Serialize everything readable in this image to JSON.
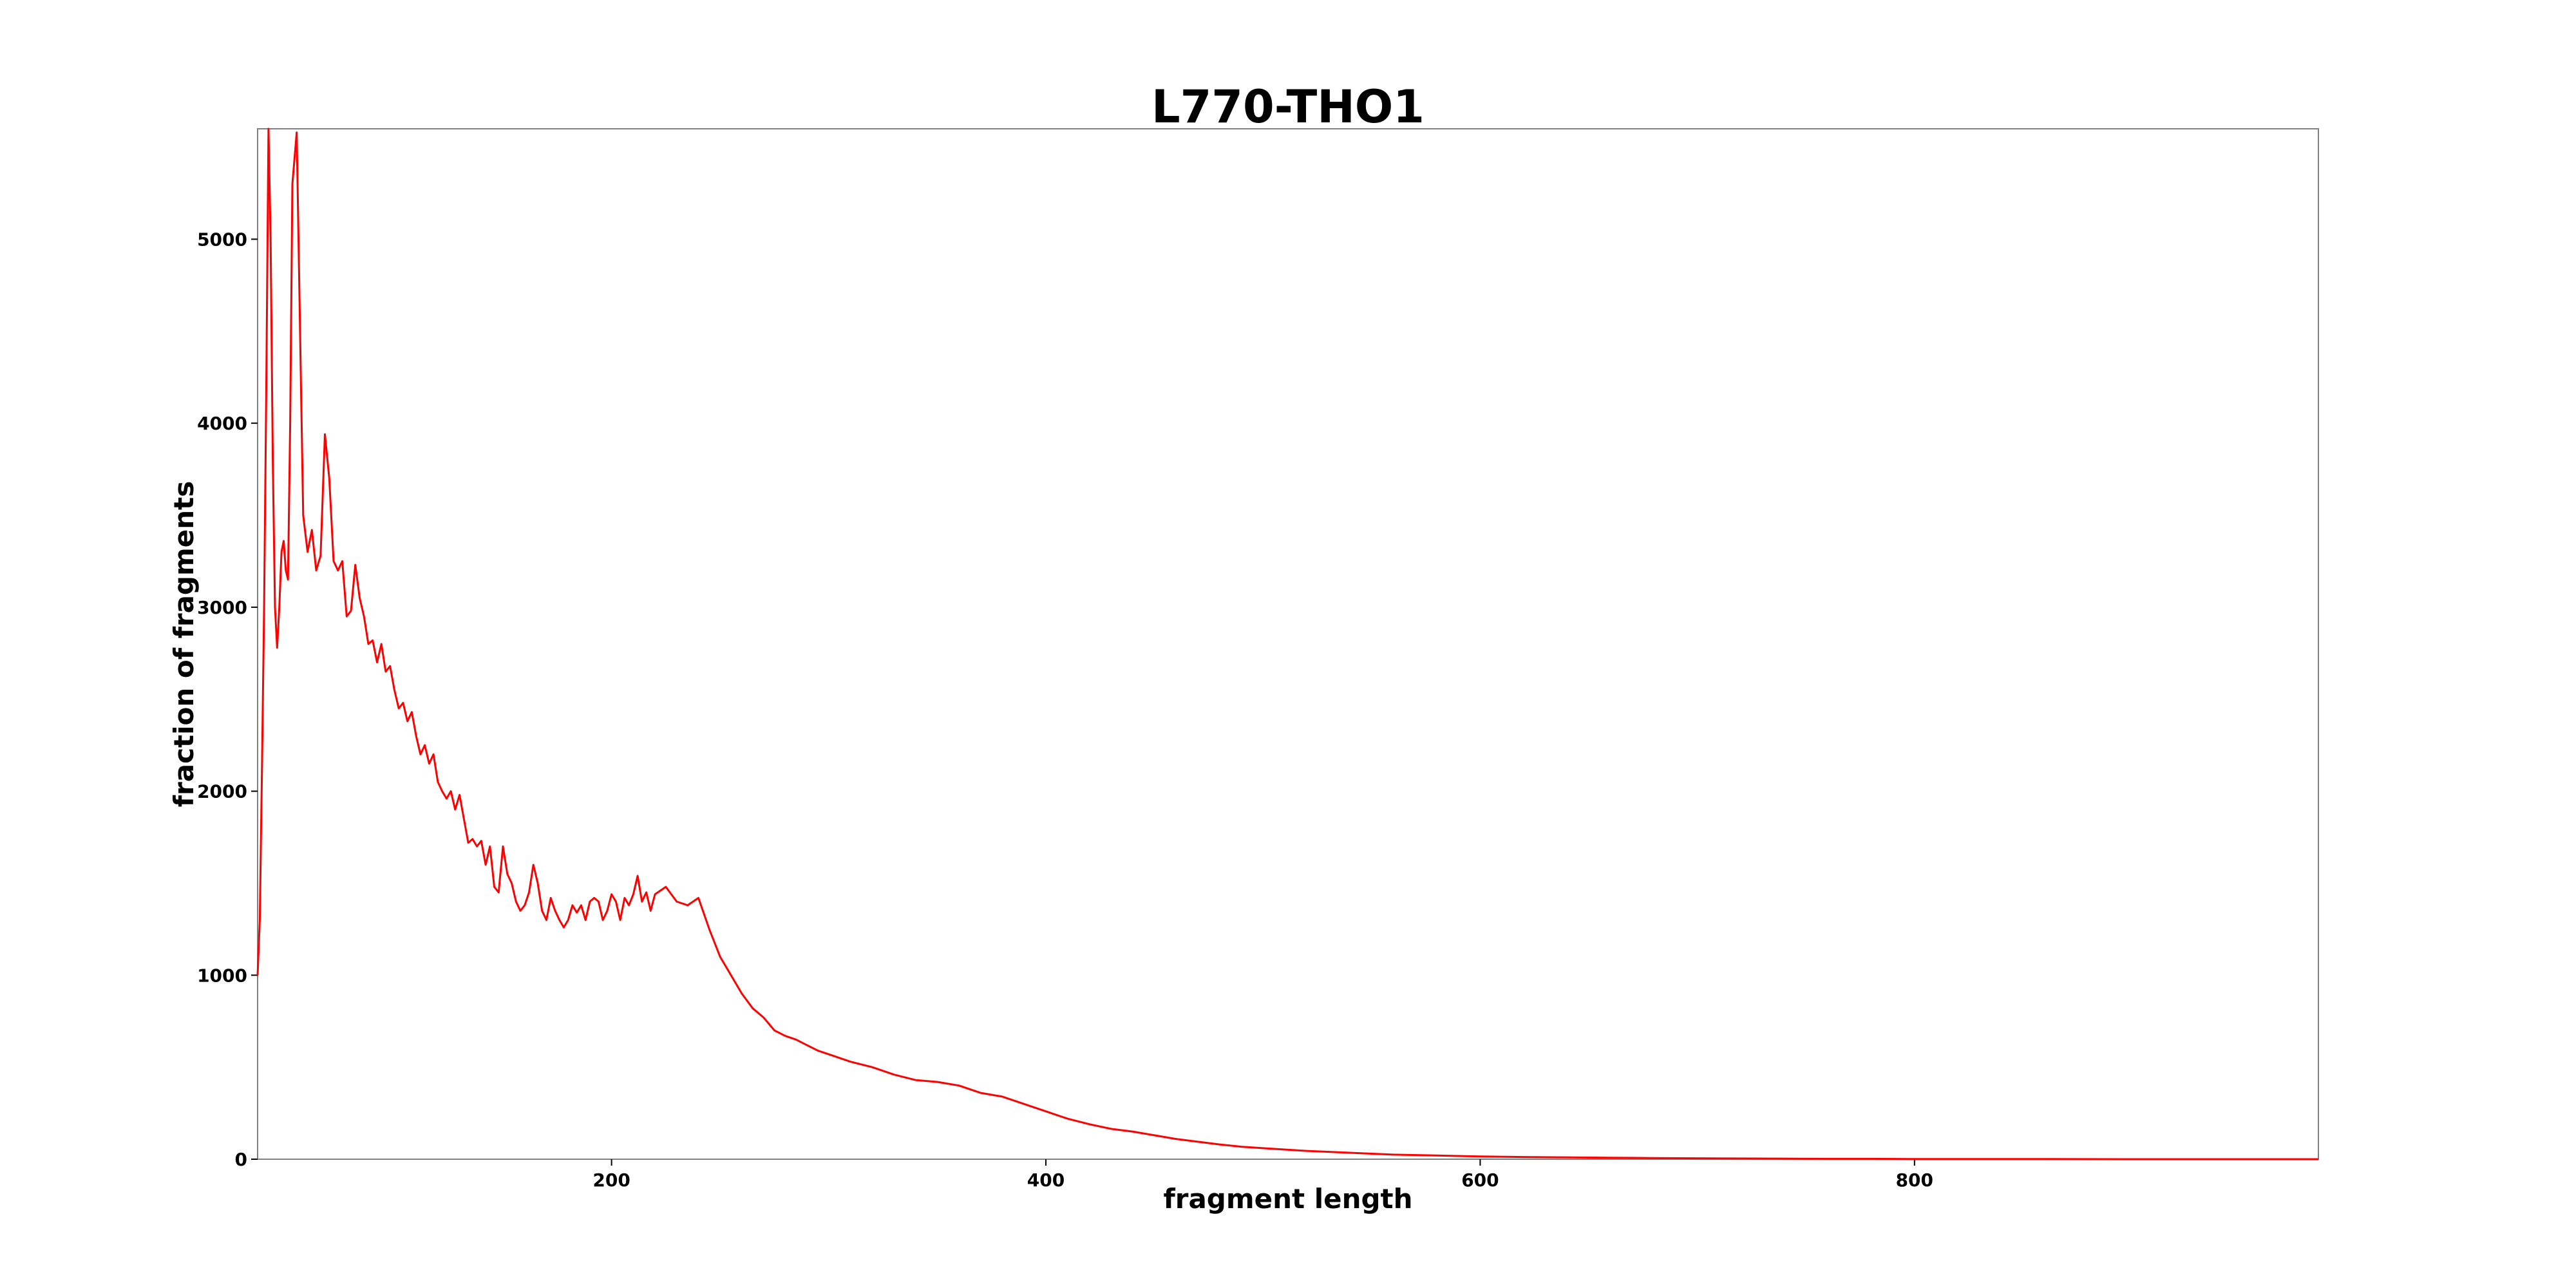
{
  "chart_data": {
    "type": "line",
    "title": "L770-THO1",
    "xlabel": "fragment length",
    "ylabel": "fraction of fragments",
    "xlim": [
      37,
      986
    ],
    "ylim": [
      0,
      5600
    ],
    "xticks": [
      200,
      400,
      600,
      800
    ],
    "yticks": [
      0,
      1000,
      2000,
      3000,
      4000,
      5000
    ],
    "grid": false,
    "legend": "none",
    "line_color": "#ff0000",
    "series": [
      {
        "x": [
          37,
          38,
          39,
          40,
          41,
          42,
          43,
          44,
          45,
          46,
          47,
          48,
          49,
          50,
          51,
          52,
          53,
          55,
          58,
          60,
          62,
          64,
          66,
          68,
          70,
          72,
          74,
          76,
          78,
          80,
          82,
          84,
          86,
          88,
          90,
          92,
          94,
          96,
          98,
          100,
          102,
          104,
          106,
          108,
          110,
          112,
          114,
          116,
          118,
          120,
          122,
          124,
          126,
          128,
          130,
          132,
          134,
          136,
          138,
          140,
          142,
          144,
          146,
          148,
          150,
          152,
          154,
          156,
          158,
          160,
          162,
          164,
          166,
          168,
          170,
          172,
          174,
          176,
          178,
          180,
          182,
          184,
          186,
          188,
          190,
          192,
          194,
          196,
          198,
          200,
          202,
          204,
          206,
          208,
          210,
          212,
          214,
          216,
          218,
          220,
          225,
          230,
          235,
          240,
          245,
          250,
          255,
          260,
          265,
          270,
          275,
          280,
          285,
          290,
          295,
          300,
          310,
          320,
          330,
          340,
          350,
          360,
          370,
          380,
          390,
          400,
          410,
          420,
          430,
          440,
          450,
          460,
          470,
          480,
          490,
          500,
          520,
          540,
          560,
          580,
          600,
          620,
          640,
          660,
          680,
          700,
          720,
          740,
          760,
          780,
          800,
          850,
          900,
          950,
          986
        ],
        "values": [
          1000,
          1300,
          2100,
          3000,
          4200,
          5600,
          5000,
          3800,
          3000,
          2780,
          3000,
          3300,
          3360,
          3200,
          3150,
          4000,
          5300,
          5580,
          3500,
          3300,
          3420,
          3200,
          3280,
          3940,
          3700,
          3250,
          3200,
          3250,
          2950,
          2980,
          3230,
          3050,
          2950,
          2800,
          2820,
          2700,
          2800,
          2650,
          2680,
          2550,
          2450,
          2480,
          2380,
          2430,
          2300,
          2200,
          2250,
          2150,
          2200,
          2050,
          2000,
          1960,
          2000,
          1900,
          1980,
          1850,
          1720,
          1740,
          1700,
          1730,
          1600,
          1700,
          1480,
          1450,
          1700,
          1550,
          1500,
          1400,
          1350,
          1380,
          1450,
          1600,
          1500,
          1350,
          1300,
          1420,
          1350,
          1300,
          1260,
          1300,
          1380,
          1340,
          1380,
          1300,
          1400,
          1420,
          1400,
          1300,
          1350,
          1440,
          1400,
          1300,
          1420,
          1380,
          1440,
          1540,
          1400,
          1450,
          1350,
          1440,
          1480,
          1400,
          1380,
          1420,
          1250,
          1100,
          1000,
          900,
          820,
          770,
          700,
          670,
          650,
          620,
          590,
          570,
          530,
          500,
          460,
          430,
          420,
          400,
          360,
          340,
          300,
          260,
          220,
          190,
          165,
          150,
          130,
          110,
          95,
          80,
          68,
          60,
          45,
          35,
          25,
          20,
          15,
          12,
          10,
          8,
          6,
          5,
          4,
          3,
          2,
          2,
          1,
          1,
          0,
          0,
          0
        ]
      }
    ]
  }
}
